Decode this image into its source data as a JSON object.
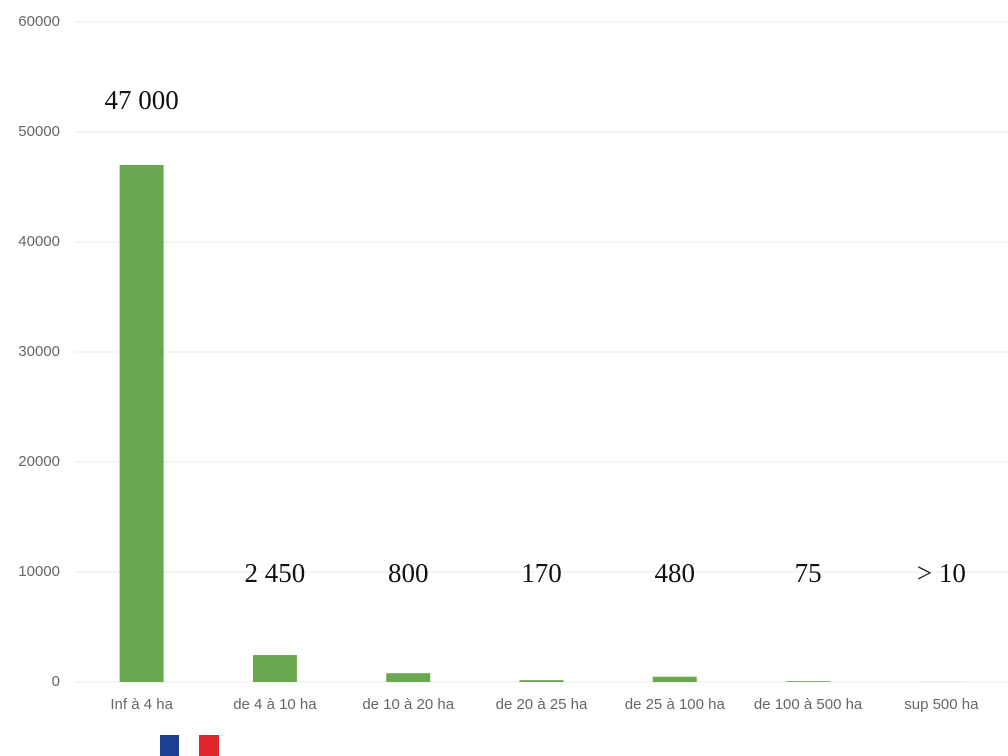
{
  "chart_data": {
    "type": "bar",
    "categories": [
      "Inf à 4 ha",
      "de 4 à 10 ha",
      "de 10 à 20 ha",
      "de 20 à 25 ha",
      "de 25 à 100 ha",
      "de 100 à 500 ha",
      "sup 500 ha"
    ],
    "values": [
      47000,
      2450,
      800,
      170,
      480,
      75,
      10
    ],
    "value_labels": [
      "47 000",
      "2 450",
      "800",
      "170",
      "480",
      "75",
      "> 10"
    ],
    "color": "#6aa84f",
    "ylim": [
      0,
      60000
    ],
    "yticks": [
      0,
      10000,
      20000,
      30000,
      40000,
      50000,
      60000
    ],
    "grid": true
  }
}
